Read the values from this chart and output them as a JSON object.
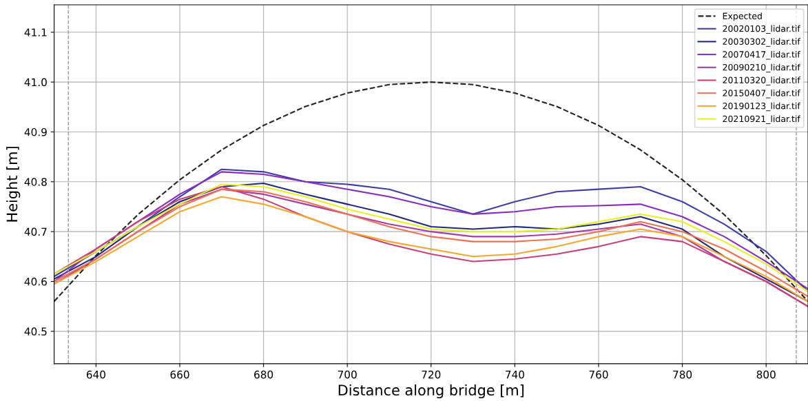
{
  "chart_data": {
    "type": "line",
    "xlabel": "Distance along bridge [m]",
    "ylabel": "Height [m]",
    "x": [
      630,
      640,
      650,
      660,
      670,
      680,
      690,
      700,
      710,
      720,
      730,
      740,
      750,
      760,
      770,
      780,
      790,
      800,
      810
    ],
    "series": [
      {
        "name": "Expected",
        "color": "#222222",
        "line_style": "dashed",
        "values": [
          40.56,
          40.652,
          40.734,
          40.804,
          40.864,
          40.913,
          40.951,
          40.978,
          40.995,
          41.0,
          40.995,
          40.978,
          40.951,
          40.913,
          40.864,
          40.804,
          40.734,
          40.652,
          40.56
        ]
      },
      {
        "name": "20020103_lidar.tif",
        "color": "#3d3da8",
        "values": [
          40.61,
          40.66,
          40.71,
          40.77,
          40.825,
          40.82,
          40.8,
          40.795,
          40.785,
          40.76,
          40.735,
          40.76,
          40.78,
          40.785,
          40.79,
          40.76,
          40.715,
          40.66,
          40.58
        ]
      },
      {
        "name": "20030302_lidar.tif",
        "color": "#1f2a7e",
        "values": [
          40.605,
          40.65,
          40.71,
          40.76,
          40.79,
          40.797,
          40.775,
          40.755,
          40.735,
          40.71,
          40.705,
          40.71,
          40.705,
          40.715,
          40.73,
          40.705,
          40.65,
          40.605,
          40.56
        ]
      },
      {
        "name": "20070417_lidar.tif",
        "color": "#8a2bc0",
        "values": [
          40.6,
          40.665,
          40.72,
          40.775,
          40.82,
          40.815,
          40.8,
          40.785,
          40.77,
          40.75,
          40.735,
          40.74,
          40.75,
          40.752,
          40.755,
          40.73,
          40.69,
          40.64,
          40.585
        ]
      },
      {
        "name": "20090210_lidar.tif",
        "color": "#a63aa6",
        "values": [
          40.595,
          40.645,
          40.7,
          40.755,
          40.785,
          40.775,
          40.755,
          40.735,
          40.715,
          40.7,
          40.69,
          40.69,
          40.695,
          40.705,
          40.715,
          40.69,
          40.64,
          40.6,
          40.55
        ]
      },
      {
        "name": "20110320_lidar.tif",
        "color": "#c8407a",
        "values": [
          40.615,
          40.665,
          40.72,
          40.765,
          40.79,
          40.765,
          40.73,
          40.7,
          40.675,
          40.655,
          40.64,
          40.645,
          40.655,
          40.67,
          40.69,
          40.68,
          40.64,
          40.6,
          40.55
        ]
      },
      {
        "name": "20150407_lidar.tif",
        "color": "#f0704f",
        "values": [
          40.6,
          40.645,
          40.7,
          40.75,
          40.785,
          40.78,
          40.76,
          40.735,
          40.71,
          40.69,
          40.68,
          40.68,
          40.685,
          40.7,
          40.72,
          40.7,
          40.665,
          40.62,
          40.57
        ]
      },
      {
        "name": "20190123_lidar.tif",
        "color": "#f9a62c",
        "values": [
          40.595,
          40.64,
          40.69,
          40.74,
          40.77,
          40.755,
          40.73,
          40.7,
          40.68,
          40.665,
          40.65,
          40.655,
          40.67,
          40.69,
          40.705,
          40.69,
          40.65,
          40.61,
          40.56
        ]
      },
      {
        "name": "20210921_lidar.tif",
        "color": "#e8f01e",
        "values": [
          40.615,
          40.66,
          40.71,
          40.755,
          40.795,
          40.79,
          40.77,
          40.745,
          40.725,
          40.705,
          40.7,
          40.7,
          40.705,
          40.72,
          40.735,
          40.72,
          40.68,
          40.635,
          40.58
        ]
      }
    ],
    "xlim": [
      630,
      810
    ],
    "xticks": [
      640,
      660,
      680,
      700,
      720,
      740,
      760,
      780,
      800
    ],
    "ylim": [
      40.435,
      41.155
    ],
    "yticks": [
      40.5,
      40.6,
      40.7,
      40.8,
      40.9,
      {
        "value": 41,
        "label": "41.0"
      },
      41.1
    ],
    "ref_lines": [
      {
        "axis": "x",
        "value": 633.4,
        "color": "#999999",
        "line_style": "dashed"
      },
      {
        "axis": "x",
        "value": 807.2,
        "color": "#999999",
        "line_style": "dashed"
      }
    ],
    "grid": true,
    "legend": "top right"
  }
}
